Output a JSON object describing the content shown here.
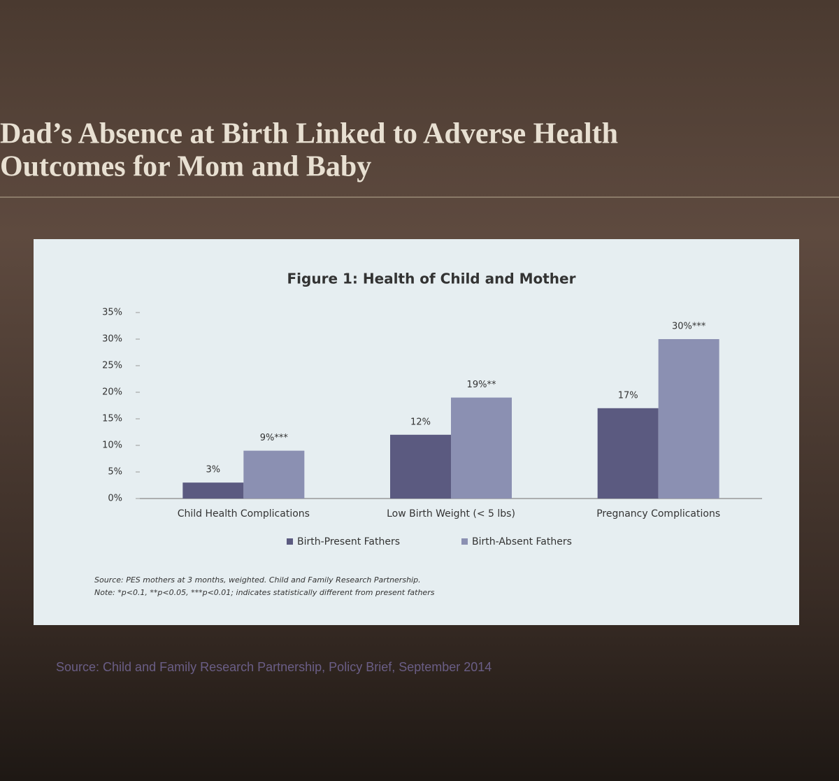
{
  "slide_title": [
    "Dad’s Absence at Birth Linked to Adverse Health",
    "Outcomes for Mom and Baby"
  ],
  "slide_source": "Source: Child and Family Research Partnership, Policy Brief, September 2014",
  "chart_data": {
    "type": "bar",
    "title": "Figure 1: Health of Child and Mother",
    "categories": [
      "Child Health Complications",
      "Low Birth Weight (< 5 lbs)",
      "Pregnancy Complications"
    ],
    "series": [
      {
        "name": "Birth-Present Fathers",
        "color": "#5b5a80",
        "values": [
          3,
          12,
          17
        ],
        "value_labels": [
          "3%",
          "12%",
          "17%"
        ]
      },
      {
        "name": "Birth-Absent Fathers",
        "color": "#8b90b2",
        "values": [
          9,
          19,
          30
        ],
        "value_labels": [
          "9%***",
          "19%**",
          "30%***"
        ]
      }
    ],
    "ylim": [
      0,
      35
    ],
    "yticks": [
      {
        "value": 0,
        "label": "0%"
      },
      {
        "value": 5,
        "label": "5%"
      },
      {
        "value": 10,
        "label": "10%"
      },
      {
        "value": 15,
        "label": "15%"
      },
      {
        "value": 20,
        "label": "20%"
      },
      {
        "value": 25,
        "label": "25%"
      },
      {
        "value": 30,
        "label": "30%"
      },
      {
        "value": 35,
        "label": "35%"
      }
    ],
    "grid": false,
    "notes": [
      "Source: PES mothers at 3 months, weighted. Child and Family Research Partnership.",
      "Note: *p<0.1, **p<0.05, ***p<0.01; indicates statistically different from present fathers"
    ]
  }
}
